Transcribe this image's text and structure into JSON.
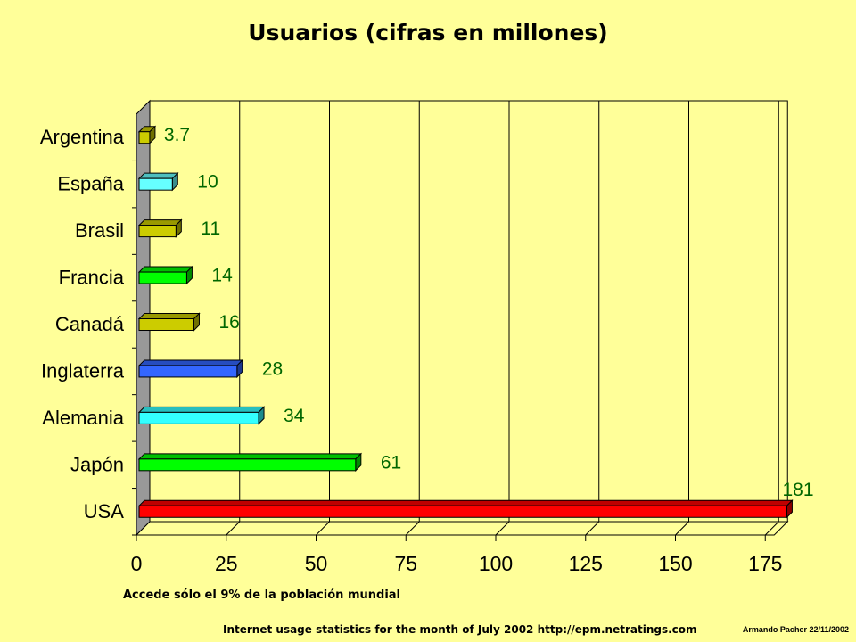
{
  "chart_data": {
    "type": "bar",
    "orientation": "horizontal",
    "title": "Usuarios (cifras en millones)",
    "xlabel": "",
    "ylabel": "",
    "xlim": [
      0,
      175
    ],
    "x_ticks": [
      "0",
      "25",
      "50",
      "75",
      "100",
      "125",
      "150",
      "175"
    ],
    "grid": "vertical",
    "categories": [
      "Argentina",
      "España",
      "Brasil",
      "Francia",
      "Canadá",
      "Inglaterra",
      "Alemania",
      "Japón",
      "USA"
    ],
    "values": [
      3.7,
      10,
      11,
      14,
      16,
      28,
      34,
      61,
      181
    ],
    "value_labels": [
      "3.7",
      "10",
      "11",
      "14",
      "16",
      "28",
      "34",
      "61",
      "181"
    ],
    "colors": [
      "#cccc00",
      "#66ffff",
      "#cccc00",
      "#00ff00",
      "#cccc00",
      "#3366ff",
      "#33ffff",
      "#00ff00",
      "#ff0000"
    ],
    "label_color": "#006600"
  },
  "footnote": "Accede sólo el 9% de la población mundial",
  "source": "Internet usage statistics for the month of July 2002 http://epm.netratings.com",
  "author": "Armando Pacher 22/11/2002"
}
